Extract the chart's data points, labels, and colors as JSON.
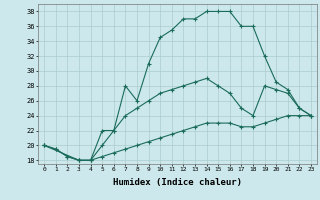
{
  "title": "",
  "xlabel": "Humidex (Indice chaleur)",
  "bg_color": "#cce8ec",
  "grid_color": "#aacccc",
  "line_color": "#1a6b5a",
  "xlim": [
    -0.5,
    23.5
  ],
  "ylim": [
    17.5,
    39
  ],
  "xticks": [
    0,
    1,
    2,
    3,
    4,
    5,
    6,
    7,
    8,
    9,
    10,
    11,
    12,
    13,
    14,
    15,
    16,
    17,
    18,
    19,
    20,
    21,
    22,
    23
  ],
  "yticks": [
    18,
    20,
    22,
    24,
    26,
    28,
    30,
    32,
    34,
    36,
    38
  ],
  "lines": [
    {
      "x": [
        0,
        1,
        2,
        3,
        4,
        5,
        6,
        7,
        8,
        9,
        10,
        11,
        12,
        13,
        14,
        15,
        16,
        17,
        18,
        19,
        20,
        21,
        22,
        23
      ],
      "y": [
        20,
        19.5,
        18.5,
        18,
        18,
        18.5,
        19,
        19.5,
        20,
        20.5,
        21,
        21.5,
        22,
        22.5,
        23,
        23,
        23,
        22.5,
        22.5,
        23,
        23.5,
        24,
        24,
        24
      ]
    },
    {
      "x": [
        0,
        1,
        2,
        3,
        4,
        5,
        6,
        7,
        8,
        9,
        10,
        11,
        12,
        13,
        14,
        15,
        16,
        17,
        18,
        19,
        20,
        21,
        22,
        23
      ],
      "y": [
        20,
        19.5,
        18.5,
        18,
        18,
        20,
        22,
        24,
        25,
        26,
        27,
        27.5,
        28,
        28.5,
        29,
        28,
        27,
        25,
        24,
        28,
        27.5,
        27,
        25,
        24
      ]
    },
    {
      "x": [
        0,
        3,
        4,
        5,
        6,
        7,
        8,
        9,
        10,
        11,
        12,
        13,
        14,
        15,
        16,
        17,
        18,
        19,
        20,
        21,
        22,
        23
      ],
      "y": [
        20,
        18,
        18,
        22,
        22,
        28,
        26,
        31,
        34.5,
        35.5,
        37,
        37,
        38,
        38,
        38,
        36,
        36,
        32,
        28.5,
        27.5,
        25,
        24
      ]
    }
  ]
}
